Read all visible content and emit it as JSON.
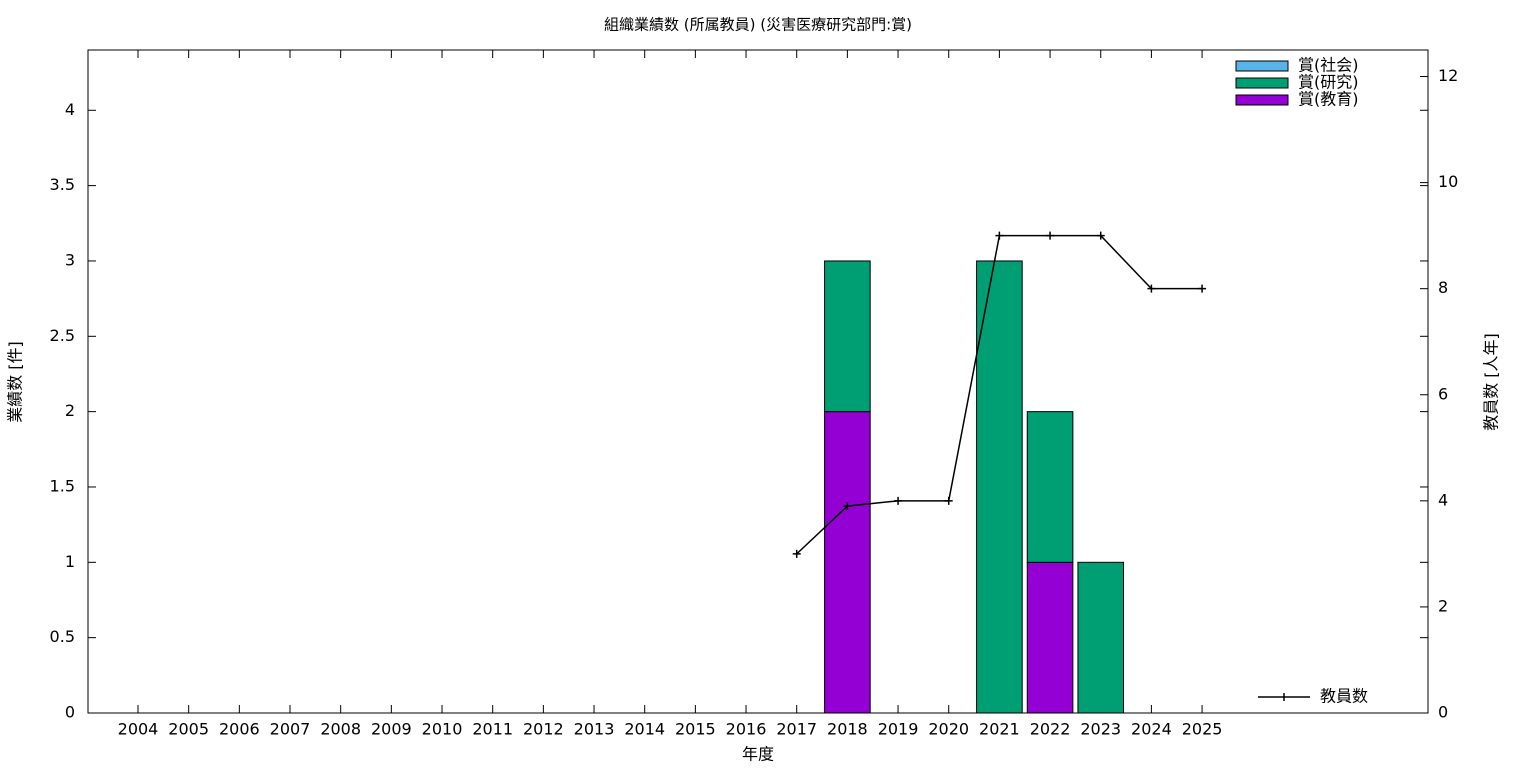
{
  "chart_data": {
    "type": "bar",
    "stacked": true,
    "title": "組織業績数 (所属教員) (災害医療研究部門:賞)",
    "x_label": "年度",
    "y_label": "業績数 [件]",
    "y2_label": "教員数 [人年]",
    "categories": [
      "2004",
      "2005",
      "2006",
      "2007",
      "2008",
      "2009",
      "2010",
      "2011",
      "2012",
      "2013",
      "2014",
      "2015",
      "2016",
      "2017",
      "2018",
      "2019",
      "2020",
      "2021",
      "2022",
      "2023",
      "2024",
      "2025"
    ],
    "ylim": [
      0,
      4.4
    ],
    "yticks": [
      0,
      0.5,
      1,
      1.5,
      2,
      2.5,
      3,
      3.5,
      4
    ],
    "y2lim": [
      0,
      12.5
    ],
    "y2ticks": [
      0,
      2,
      4,
      6,
      8,
      10,
      12
    ],
    "series": [
      {
        "name": "賞(教育)",
        "color": "#9400d3",
        "values": [
          0,
          0,
          0,
          0,
          0,
          0,
          0,
          0,
          0,
          0,
          0,
          0,
          0,
          0,
          2,
          0,
          0,
          0,
          1,
          0,
          0,
          0
        ]
      },
      {
        "name": "賞(研究)",
        "color": "#009e73",
        "values": [
          0,
          0,
          0,
          0,
          0,
          0,
          0,
          0,
          0,
          0,
          0,
          0,
          0,
          0,
          1,
          0,
          0,
          3,
          1,
          1,
          0,
          0
        ]
      },
      {
        "name": "賞(社会)",
        "color": "#56b4e9",
        "values": [
          0,
          0,
          0,
          0,
          0,
          0,
          0,
          0,
          0,
          0,
          0,
          0,
          0,
          0,
          0,
          0,
          0,
          0,
          0,
          0,
          0,
          0
        ]
      },
      {
        "name": "教員数",
        "type": "line",
        "axis": "y2",
        "color": "#000000",
        "values": [
          null,
          null,
          null,
          null,
          null,
          null,
          null,
          null,
          null,
          null,
          null,
          null,
          null,
          3,
          3.9,
          4,
          4,
          9,
          9,
          9,
          8,
          8
        ]
      }
    ]
  }
}
